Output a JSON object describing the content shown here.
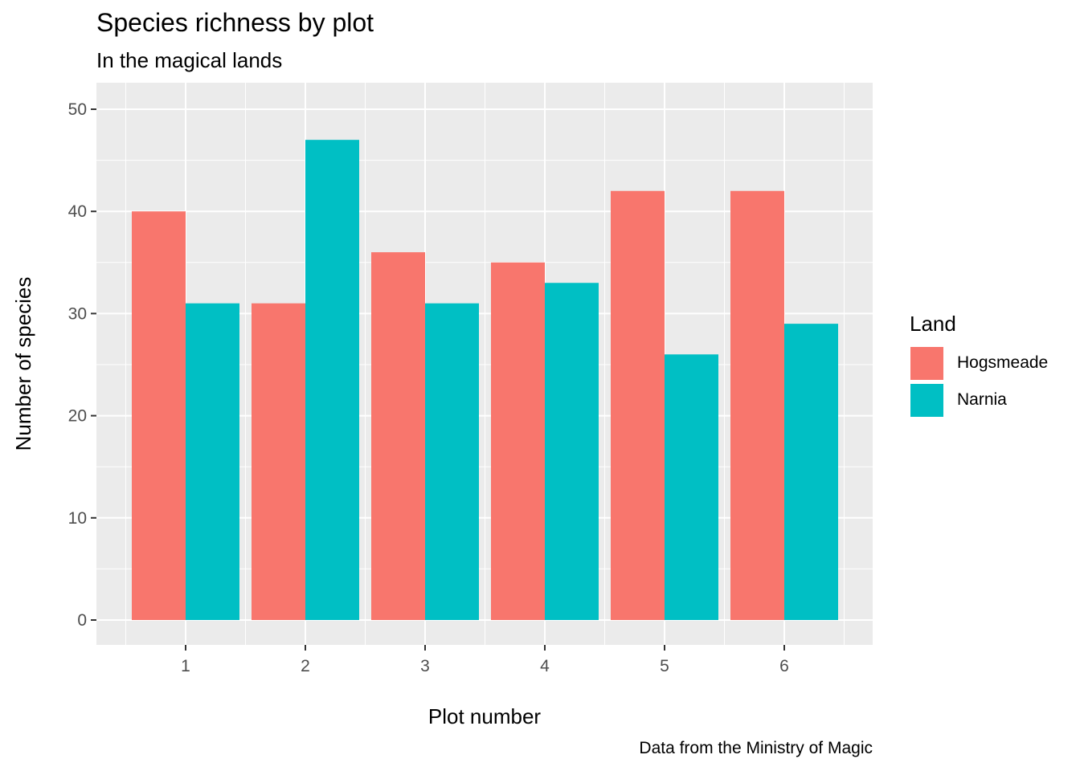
{
  "chart_data": {
    "type": "bar",
    "title": "Species richness by plot",
    "subtitle": "In the magical lands",
    "caption": "Data from the Ministry of Magic",
    "xlabel": "Plot number",
    "ylabel": "Number of species",
    "categories": [
      "1",
      "2",
      "3",
      "4",
      "5",
      "6"
    ],
    "series": [
      {
        "name": "Hogsmeade",
        "color": "#F8766D",
        "values": [
          40,
          31,
          36,
          35,
          42,
          42
        ]
      },
      {
        "name": "Narnia",
        "color": "#00BFC4",
        "values": [
          31,
          47,
          31,
          33,
          26,
          29
        ]
      }
    ],
    "ylim": [
      0,
      50
    ],
    "yticks": [
      0,
      10,
      20,
      30,
      40,
      50
    ],
    "legend_title": "Land",
    "legend_position": "right",
    "grid": true,
    "panel_background": "#EBEBEB"
  }
}
